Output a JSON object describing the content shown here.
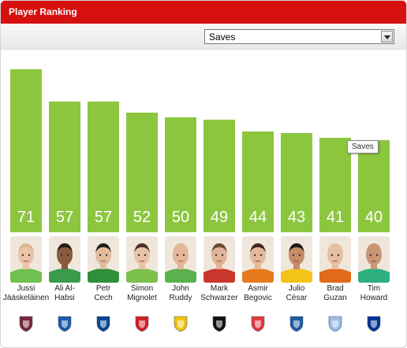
{
  "header": {
    "title": "Player Ranking"
  },
  "selector": {
    "value": "Saves"
  },
  "tooltip": {
    "text": "Saves"
  },
  "colors": {
    "header": "#d60f0f",
    "bar": "#8cc63f"
  },
  "chart_data": {
    "type": "bar",
    "categories": [
      "Jussi Jääskeläinen",
      "Ali Al-Habsi",
      "Petr Cech",
      "Simon Mignolet",
      "John Ruddy",
      "Mark Schwarzer",
      "Asmir Begovic",
      "Julio César",
      "Brad Guzan",
      "Tim Howard"
    ],
    "values": [
      71,
      57,
      57,
      52,
      50,
      49,
      44,
      43,
      41,
      40
    ]
  },
  "players": [
    {
      "name_lines": "Jussi\nJääskeläinen",
      "club": "West Ham United",
      "crest_icon": "west-ham-crest-icon",
      "crest_color": "#7a263a",
      "kit_color": "#6fc04e",
      "skin": "#e9c4a8",
      "hair": "#d8b98a"
    },
    {
      "name_lines": "Ali Al-\nHabsi",
      "club": "Wigan Athletic",
      "crest_icon": "wigan-crest-icon",
      "crest_color": "#1d59af",
      "kit_color": "#3a9b4c",
      "skin": "#8a5a3c",
      "hair": "#2a1c12"
    },
    {
      "name_lines": "Petr\nCech",
      "club": "Chelsea",
      "crest_icon": "chelsea-crest-icon",
      "crest_color": "#034694",
      "kit_color": "#2f8f3a",
      "skin": "#e3bca0",
      "hair": "#1e1e1e"
    },
    {
      "name_lines": "Simon\nMignolet",
      "club": "Sunderland",
      "crest_icon": "sunderland-crest-icon",
      "crest_color": "#d32027",
      "kit_color": "#7cc14b",
      "skin": "#e8c2a6",
      "hair": "#4a3424"
    },
    {
      "name_lines": "John\nRuddy",
      "club": "Norwich City",
      "crest_icon": "norwich-crest-icon",
      "crest_color": "#f1c40f",
      "kit_color": "#5bb14e",
      "skin": "#e4b79a",
      "hair": "#e4b79a"
    },
    {
      "name_lines": "Mark\nSchwarzer",
      "club": "Fulham",
      "crest_icon": "fulham-crest-icon",
      "crest_color": "#111111",
      "kit_color": "#c9372c",
      "skin": "#e2b397",
      "hair": "#6a4a30"
    },
    {
      "name_lines": "Asmir\nBegovic",
      "club": "Stoke City",
      "crest_icon": "stoke-crest-icon",
      "crest_color": "#e03a3e",
      "kit_color": "#e87a1e",
      "skin": "#e3b89b",
      "hair": "#3c2a1c"
    },
    {
      "name_lines": "Julio\nCésar",
      "club": "Queens Park Rangers",
      "crest_icon": "qpr-crest-icon",
      "crest_color": "#1d5ba4",
      "kit_color": "#f2c418",
      "skin": "#c48d68",
      "hair": "#1a1a1a"
    },
    {
      "name_lines": "Brad\nGuzan",
      "club": "Aston Villa",
      "crest_icon": "aston-villa-crest-icon",
      "crest_color": "#95bfe5",
      "kit_color": "#e06a1a",
      "skin": "#e6bfa2",
      "hair": "#e6bfa2"
    },
    {
      "name_lines": "Tim\nHoward",
      "club": "Everton",
      "crest_icon": "everton-crest-icon",
      "crest_color": "#003399",
      "kit_color": "#2db07e",
      "skin": "#c99673",
      "hair": "#c99673"
    }
  ]
}
